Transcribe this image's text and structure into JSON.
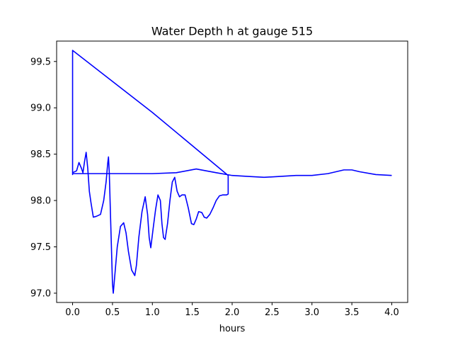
{
  "chart_data": {
    "type": "line",
    "title": "Water Depth h at gauge 515",
    "xlabel": "hours",
    "ylabel": "",
    "xlim": [
      -0.2,
      4.2
    ],
    "ylim": [
      96.9,
      99.72
    ],
    "xticks": [
      0.0,
      0.5,
      1.0,
      1.5,
      2.0,
      2.5,
      3.0,
      3.5,
      4.0
    ],
    "xtick_labels": [
      "0.0",
      "0.5",
      "1.0",
      "1.5",
      "2.0",
      "2.5",
      "3.0",
      "3.5",
      "4.0"
    ],
    "yticks": [
      97.0,
      97.5,
      98.0,
      98.5,
      99.0,
      99.5
    ],
    "ytick_labels": [
      "97.0",
      "97.5",
      "98.0",
      "98.5",
      "99.0",
      "99.5"
    ],
    "grid": false,
    "legend": false,
    "series": [
      {
        "color": "#0000ff",
        "x": [
          0.0,
          0.0,
          0.0,
          0.05,
          0.08,
          0.11,
          0.13,
          0.15,
          0.17,
          0.19,
          0.21,
          0.23,
          0.26,
          0.3,
          0.35,
          0.39,
          0.42,
          0.44,
          0.45,
          0.46,
          0.48,
          0.5,
          0.51,
          0.53,
          0.56,
          0.6,
          0.64,
          0.67,
          0.7,
          0.74,
          0.78,
          0.8,
          0.83,
          0.87,
          0.91,
          0.94,
          0.96,
          0.98,
          1.01,
          1.04,
          1.07,
          1.1,
          1.12,
          1.14,
          1.16,
          1.19,
          1.22,
          1.25,
          1.28,
          1.31,
          1.34,
          1.37,
          1.41,
          1.45,
          1.49,
          1.52,
          1.55,
          1.58,
          1.62,
          1.65,
          1.68,
          1.72,
          1.76,
          1.8,
          1.84,
          1.88,
          1.91,
          1.93,
          1.95,
          1.95,
          1.95,
          1.0,
          0.0,
          0.0,
          0.2,
          0.5,
          1.0,
          1.3,
          1.55,
          1.8,
          2.0,
          2.2,
          2.4,
          2.6,
          2.8,
          3.0,
          3.2,
          3.4,
          3.5,
          3.6,
          3.8,
          4.0
        ],
        "y": [
          99.62,
          98.28,
          98.3,
          98.32,
          98.41,
          98.35,
          98.3,
          98.42,
          98.52,
          98.35,
          98.1,
          97.98,
          97.82,
          97.83,
          97.85,
          98.0,
          98.2,
          98.4,
          98.47,
          98.3,
          97.7,
          97.1,
          97.0,
          97.2,
          97.5,
          97.72,
          97.76,
          97.65,
          97.45,
          97.25,
          97.19,
          97.3,
          97.6,
          97.88,
          98.04,
          97.85,
          97.6,
          97.49,
          97.7,
          97.9,
          98.06,
          98.0,
          97.75,
          97.6,
          97.58,
          97.75,
          98.0,
          98.2,
          98.25,
          98.1,
          98.04,
          98.06,
          98.06,
          97.92,
          97.75,
          97.74,
          97.8,
          97.88,
          97.87,
          97.82,
          97.81,
          97.85,
          97.92,
          98.0,
          98.05,
          98.06,
          98.06,
          98.06,
          98.07,
          98.2,
          98.27,
          98.95,
          99.62,
          98.29,
          98.29,
          98.29,
          98.29,
          98.3,
          98.34,
          98.3,
          98.27,
          98.26,
          98.25,
          98.26,
          98.27,
          98.27,
          98.29,
          98.33,
          98.33,
          98.31,
          98.28,
          98.27
        ]
      }
    ]
  }
}
